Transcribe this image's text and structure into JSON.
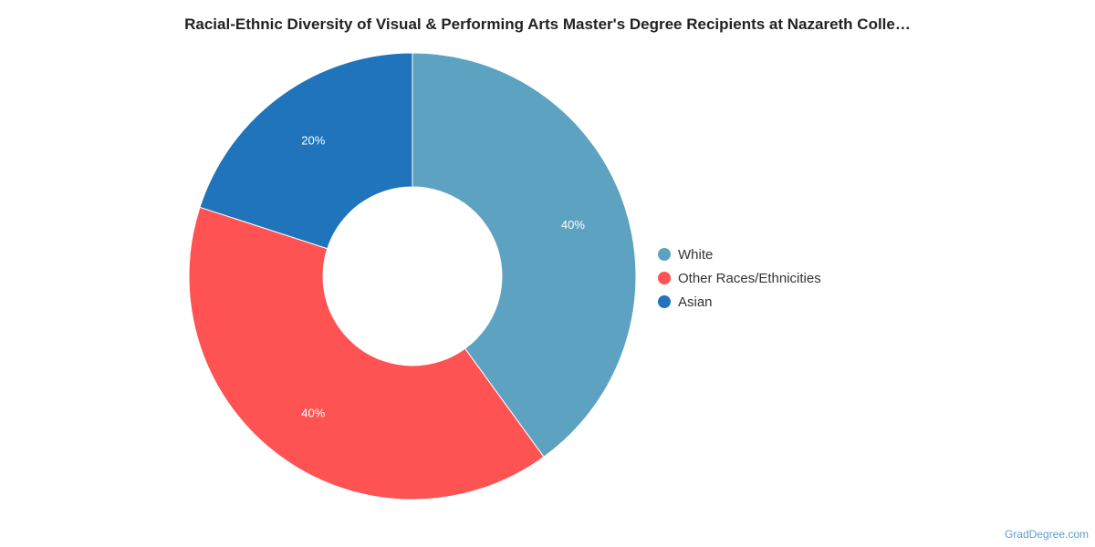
{
  "chart_data": {
    "type": "pie",
    "title": "Racial-Ethnic Diversity of Visual & Performing Arts Master's Degree Recipients at Nazareth Colle…",
    "donut": true,
    "legend_position": "right",
    "slices": [
      {
        "label": "White",
        "value": 40,
        "display": "40%",
        "color": "#5da2c0"
      },
      {
        "label": "Other Races/Ethnicities",
        "value": 40,
        "display": "40%",
        "color": "#ff5252"
      },
      {
        "label": "Asian",
        "value": 20,
        "display": "20%",
        "color": "#1f74bb"
      }
    ]
  },
  "watermark": "GradDegree.com"
}
